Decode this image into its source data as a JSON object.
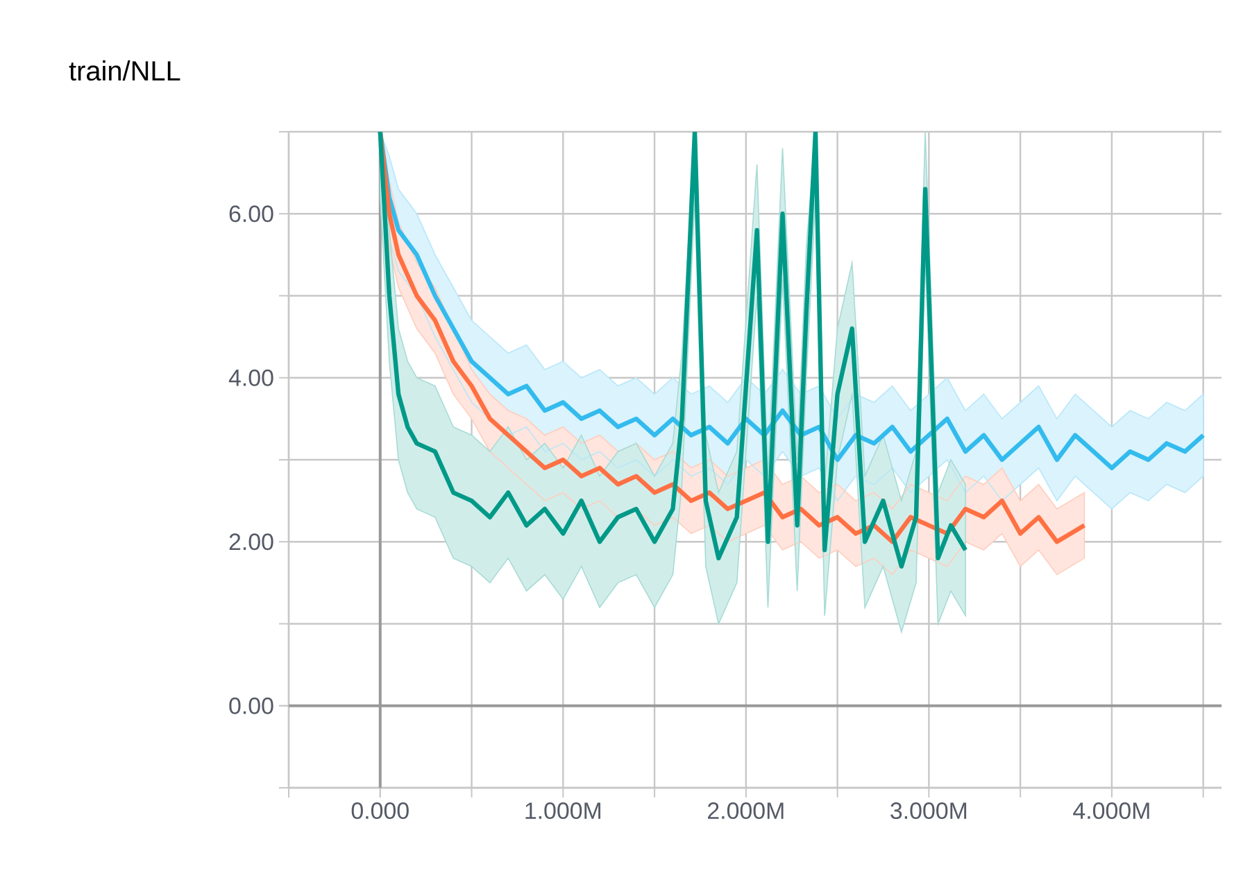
{
  "chart_data": {
    "type": "line",
    "title": "train/NLL",
    "xlim": [
      -500000,
      4600000
    ],
    "ylim": [
      -1,
      7
    ],
    "xticks": [
      {
        "value": -500000,
        "label": null
      },
      {
        "value": 0,
        "label": "0.000"
      },
      {
        "value": 500000,
        "label": null
      },
      {
        "value": 1000000,
        "label": "1.000M"
      },
      {
        "value": 1500000,
        "label": null
      },
      {
        "value": 2000000,
        "label": "2.000M"
      },
      {
        "value": 2500000,
        "label": null
      },
      {
        "value": 3000000,
        "label": "3.000M"
      },
      {
        "value": 3500000,
        "label": null
      },
      {
        "value": 4000000,
        "label": "4.000M"
      },
      {
        "value": 4500000,
        "label": null
      }
    ],
    "yticks": [
      {
        "value": -1,
        "label": null
      },
      {
        "value": 0,
        "label": "0.00"
      },
      {
        "value": 1,
        "label": null
      },
      {
        "value": 2,
        "label": "2.00"
      },
      {
        "value": 3,
        "label": null
      },
      {
        "value": 4,
        "label": "4.00"
      },
      {
        "value": 5,
        "label": null
      },
      {
        "value": 6,
        "label": "6.00"
      },
      {
        "value": 7,
        "label": null
      }
    ],
    "grid": true,
    "series": [
      {
        "color": "#33bbee",
        "x": [
          0,
          50000,
          100000,
          200000,
          300000,
          400000,
          500000,
          600000,
          700000,
          800000,
          900000,
          1000000,
          1100000,
          1200000,
          1300000,
          1400000,
          1500000,
          1600000,
          1700000,
          1800000,
          1900000,
          2000000,
          2100000,
          2200000,
          2300000,
          2400000,
          2500000,
          2600000,
          2700000,
          2800000,
          2900000,
          3000000,
          3100000,
          3200000,
          3300000,
          3400000,
          3500000,
          3600000,
          3700000,
          3800000,
          3900000,
          4000000,
          4100000,
          4200000,
          4300000,
          4400000,
          4500000
        ],
        "values": [
          7,
          6.2,
          5.8,
          5.5,
          5.0,
          4.6,
          4.2,
          4.0,
          3.8,
          3.9,
          3.6,
          3.7,
          3.5,
          3.6,
          3.4,
          3.5,
          3.3,
          3.5,
          3.3,
          3.4,
          3.2,
          3.5,
          3.3,
          3.6,
          3.3,
          3.4,
          3.0,
          3.3,
          3.2,
          3.4,
          3.1,
          3.3,
          3.5,
          3.1,
          3.3,
          3.0,
          3.2,
          3.4,
          3.0,
          3.3,
          3.1,
          2.9,
          3.1,
          3.0,
          3.2,
          3.1,
          3.3
        ],
        "lower": [
          6.5,
          5.7,
          5.3,
          5.0,
          4.5,
          4.1,
          3.7,
          3.5,
          3.3,
          3.4,
          3.1,
          3.2,
          3.0,
          3.1,
          2.9,
          3.0,
          2.8,
          3.0,
          2.8,
          2.9,
          2.7,
          3.0,
          2.8,
          3.1,
          2.8,
          2.9,
          2.5,
          2.8,
          2.7,
          2.9,
          2.6,
          2.8,
          3.0,
          2.6,
          2.8,
          2.5,
          2.7,
          2.9,
          2.5,
          2.8,
          2.6,
          2.4,
          2.6,
          2.5,
          2.7,
          2.6,
          2.8
        ],
        "upper": [
          7,
          6.7,
          6.3,
          6.0,
          5.5,
          5.1,
          4.7,
          4.5,
          4.3,
          4.4,
          4.1,
          4.2,
          4.0,
          4.1,
          3.9,
          4.0,
          3.8,
          4.0,
          3.8,
          3.9,
          3.7,
          4.0,
          3.8,
          4.1,
          3.8,
          3.9,
          3.5,
          3.8,
          3.7,
          3.9,
          3.6,
          3.8,
          4.0,
          3.6,
          3.8,
          3.5,
          3.7,
          3.9,
          3.5,
          3.8,
          3.6,
          3.4,
          3.6,
          3.5,
          3.7,
          3.6,
          3.8
        ]
      },
      {
        "color": "#ff7043",
        "x": [
          0,
          50000,
          100000,
          200000,
          300000,
          400000,
          500000,
          600000,
          700000,
          800000,
          900000,
          1000000,
          1100000,
          1200000,
          1300000,
          1400000,
          1500000,
          1600000,
          1700000,
          1800000,
          1900000,
          2000000,
          2100000,
          2200000,
          2300000,
          2400000,
          2500000,
          2600000,
          2700000,
          2800000,
          2900000,
          3000000,
          3100000,
          3200000,
          3300000,
          3400000,
          3500000,
          3600000,
          3700000,
          3850000
        ],
        "values": [
          7,
          6.0,
          5.5,
          5.0,
          4.7,
          4.2,
          3.9,
          3.5,
          3.3,
          3.1,
          2.9,
          3.0,
          2.8,
          2.9,
          2.7,
          2.8,
          2.6,
          2.7,
          2.5,
          2.6,
          2.4,
          2.5,
          2.6,
          2.3,
          2.4,
          2.2,
          2.3,
          2.1,
          2.2,
          2.0,
          2.3,
          2.2,
          2.1,
          2.4,
          2.3,
          2.5,
          2.1,
          2.3,
          2.0,
          2.2
        ],
        "lower": [
          6.6,
          5.6,
          5.1,
          4.6,
          4.3,
          3.8,
          3.5,
          3.1,
          2.9,
          2.7,
          2.5,
          2.6,
          2.4,
          2.5,
          2.3,
          2.4,
          2.2,
          2.3,
          2.1,
          2.2,
          2.0,
          2.1,
          2.2,
          1.9,
          2.0,
          1.8,
          1.9,
          1.7,
          1.8,
          1.6,
          1.9,
          1.8,
          1.7,
          2.0,
          1.9,
          2.1,
          1.7,
          1.9,
          1.6,
          1.8
        ],
        "upper": [
          7,
          6.4,
          5.9,
          5.4,
          5.1,
          4.6,
          4.1,
          3.8,
          3.6,
          3.5,
          3.3,
          3.4,
          3.2,
          3.3,
          3.1,
          3.2,
          3.0,
          3.1,
          2.9,
          3.0,
          2.8,
          2.9,
          3.0,
          2.7,
          2.8,
          2.6,
          2.7,
          2.5,
          2.6,
          2.4,
          2.7,
          2.6,
          2.5,
          2.8,
          2.7,
          2.9,
          2.5,
          2.7,
          2.4,
          2.6
        ]
      },
      {
        "color": "#009988",
        "x": [
          0,
          50000,
          100000,
          150000,
          200000,
          300000,
          400000,
          500000,
          600000,
          700000,
          800000,
          900000,
          1000000,
          1100000,
          1200000,
          1300000,
          1400000,
          1500000,
          1600000,
          1650000,
          1720000,
          1780000,
          1850000,
          1950000,
          2060000,
          2120000,
          2200000,
          2280000,
          2330000,
          2380000,
          2430000,
          2500000,
          2580000,
          2650000,
          2750000,
          2850000,
          2930000,
          2980000,
          3050000,
          3120000,
          3200000
        ],
        "values": [
          7,
          5.0,
          3.8,
          3.4,
          3.2,
          3.1,
          2.6,
          2.5,
          2.3,
          2.6,
          2.2,
          2.4,
          2.1,
          2.5,
          2.0,
          2.3,
          2.4,
          2.0,
          2.4,
          3.5,
          7,
          2.5,
          1.8,
          2.3,
          5.8,
          2.0,
          6.0,
          2.2,
          4.8,
          7,
          1.9,
          3.8,
          4.6,
          2.0,
          2.5,
          1.7,
          2.3,
          6.3,
          1.8,
          2.2,
          1.9
        ],
        "lower": [
          6.2,
          4.2,
          3.0,
          2.6,
          2.4,
          2.3,
          1.8,
          1.7,
          1.5,
          1.8,
          1.4,
          1.6,
          1.3,
          1.7,
          1.2,
          1.5,
          1.6,
          1.2,
          1.6,
          2.7,
          6.2,
          1.7,
          1.0,
          1.5,
          5.0,
          1.2,
          5.2,
          1.4,
          4.0,
          6.2,
          1.1,
          3.0,
          3.8,
          1.2,
          1.7,
          0.9,
          1.5,
          5.5,
          1.0,
          1.4,
          1.1
        ],
        "upper": [
          7,
          5.8,
          4.6,
          4.2,
          4.0,
          3.9,
          3.4,
          3.3,
          3.1,
          3.4,
          3.0,
          3.2,
          2.9,
          3.3,
          2.8,
          3.1,
          3.2,
          2.8,
          3.2,
          4.3,
          7,
          3.3,
          2.6,
          3.1,
          6.6,
          2.8,
          6.8,
          3.0,
          5.6,
          7,
          2.7,
          4.6,
          5.4,
          2.8,
          3.3,
          2.5,
          3.1,
          7,
          2.6,
          3.0,
          2.7
        ]
      }
    ]
  }
}
